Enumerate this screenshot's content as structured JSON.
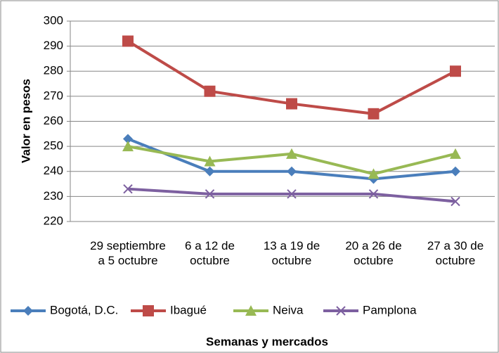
{
  "chart_data": {
    "type": "line",
    "x_label": "Semanas y mercados",
    "y_label": "Valor en pesos",
    "categories": [
      "29 septiembre a 5 octubre",
      "6 a 12 de octubre",
      "13 a 19 de octubre",
      "20 a 26 de octubre",
      "27 a 30 de octubre"
    ],
    "series": [
      {
        "name": "Bogotá, D.C.",
        "color": "#4a7ebb",
        "marker": "diamond",
        "values": [
          253,
          240,
          240,
          237,
          240
        ]
      },
      {
        "name": "Ibagué",
        "color": "#be4b48",
        "marker": "square",
        "values": [
          292,
          272,
          267,
          263,
          280
        ]
      },
      {
        "name": "Neiva",
        "color": "#98b954",
        "marker": "triangle",
        "values": [
          250,
          244,
          247,
          239,
          247
        ]
      },
      {
        "name": "Pamplona",
        "color": "#7d60a0",
        "marker": "x",
        "values": [
          233,
          231,
          231,
          231,
          228
        ]
      }
    ],
    "ylim": [
      220,
      300
    ],
    "yticks": [
      220,
      230,
      240,
      250,
      260,
      270,
      280,
      290,
      300
    ],
    "grid": true,
    "legend": "bottom"
  }
}
